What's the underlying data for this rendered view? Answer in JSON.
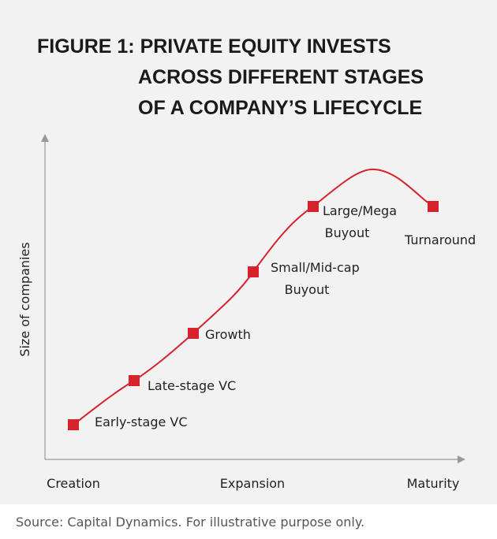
{
  "title": [
    "FIGURE 1: PRIVATE EQUITY INVESTS",
    "ACROSS DIFFERENT STAGES",
    "OF A COMPANY’S LIFECYCLE"
  ],
  "y_axis_label": "Size of companies",
  "x_axis_labels": [
    "Creation",
    "Expansion",
    "Maturity"
  ],
  "stages": [
    {
      "lines": [
        "Early-stage VC"
      ]
    },
    {
      "lines": [
        "Late-stage VC"
      ]
    },
    {
      "lines": [
        "Growth"
      ]
    },
    {
      "lines": [
        "Small/Mid-cap",
        "Buyout"
      ]
    },
    {
      "lines": [
        "Large/Mega",
        "Buyout"
      ]
    },
    {
      "lines": [
        "Turnaround"
      ]
    }
  ],
  "source": "Source: Capital Dynamics. For illustrative purpose only."
}
